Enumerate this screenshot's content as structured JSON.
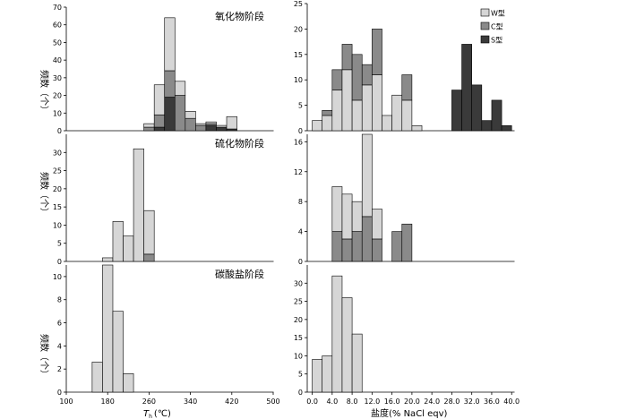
{
  "colors": {
    "W": "#d6d6d6",
    "C": "#8a8a8a",
    "S": "#3a3a3a",
    "stroke": "#000000"
  },
  "labels": {
    "ylabel_left": "频数（个）",
    "xlabel_left_main": "T",
    "xlabel_left_sub": "h",
    "xlabel_left_unit": "(℃)",
    "xlabel_right": "盐度(% NaCl eqv)"
  },
  "chart_data": [
    {
      "id": "th-oxide",
      "type": "bar",
      "stacked": true,
      "title": "氧化物阶段",
      "xlim": [
        100,
        500
      ],
      "ylim": [
        0,
        70
      ],
      "yticks": [
        0,
        10,
        20,
        30,
        40,
        50,
        60,
        70
      ],
      "xticks": [],
      "bin_width": 20,
      "bins": [
        260,
        280,
        300,
        320,
        340,
        360,
        380,
        400,
        420
      ],
      "series": [
        {
          "name": "",
          "key": "S",
          "values": [
            0,
            2,
            19,
            0,
            0,
            0,
            3,
            2,
            1
          ]
        },
        {
          "name": "",
          "key": "C",
          "values": [
            2,
            7,
            15,
            20,
            7,
            3,
            1,
            0,
            0
          ]
        },
        {
          "name": "",
          "key": "W",
          "values": [
            2,
            17,
            30,
            8,
            4,
            1,
            1,
            1,
            7
          ]
        }
      ]
    },
    {
      "id": "th-sulfide",
      "type": "bar",
      "stacked": true,
      "title": "硫化物阶段",
      "xlim": [
        100,
        500
      ],
      "ylim": [
        0,
        35
      ],
      "yticks": [
        0,
        5,
        10,
        15,
        20,
        25,
        30
      ],
      "xticks": [],
      "bin_width": 20,
      "bins": [
        180,
        200,
        220,
        240,
        260
      ],
      "series": [
        {
          "name": "",
          "key": "C",
          "values": [
            0,
            0,
            0,
            0,
            2
          ]
        },
        {
          "name": "",
          "key": "W",
          "values": [
            1,
            11,
            7,
            31,
            12
          ]
        }
      ]
    },
    {
      "id": "th-carbonate",
      "type": "bar",
      "stacked": true,
      "title": "碳酸盐阶段",
      "xlim": [
        100,
        500
      ],
      "ylim": [
        0,
        11
      ],
      "yticks": [
        0,
        2,
        4,
        6,
        8,
        10
      ],
      "xticks": [
        100,
        180,
        260,
        340,
        420,
        500
      ],
      "bin_width": 20,
      "bins": [
        160,
        180,
        200,
        220
      ],
      "series": [
        {
          "name": "",
          "key": "W",
          "values": [
            2.6,
            11,
            7,
            1.6
          ]
        }
      ]
    },
    {
      "id": "sal-oxide",
      "type": "bar",
      "stacked": true,
      "title": "",
      "xlim": [
        -1,
        40.5
      ],
      "ylim": [
        0,
        25
      ],
      "yticks": [
        0,
        5,
        10,
        15,
        20,
        25
      ],
      "xticks": [],
      "bin_width": 2,
      "bins": [
        1,
        3,
        5,
        7,
        9,
        11,
        13,
        15,
        17,
        19,
        21,
        23,
        25,
        27,
        29,
        31,
        33,
        35,
        37,
        39
      ],
      "legend": {
        "position": "top-right",
        "entries": [
          {
            "key": "W",
            "label": "W型"
          },
          {
            "key": "C",
            "label": "C型"
          },
          {
            "key": "S",
            "label": "S型"
          }
        ]
      },
      "series": [
        {
          "name": "W型",
          "key": "W",
          "values": [
            2,
            3,
            8,
            12,
            6,
            9,
            11,
            3,
            7,
            6,
            1,
            0,
            0,
            0,
            0,
            0,
            0,
            0,
            0,
            0
          ]
        },
        {
          "name": "C型",
          "key": "C",
          "values": [
            0,
            1,
            4,
            5,
            9,
            4,
            9,
            0,
            0,
            5,
            0,
            0,
            0,
            0,
            0,
            0,
            0,
            0,
            0,
            0
          ]
        },
        {
          "name": "S型",
          "key": "S",
          "values": [
            0,
            0,
            0,
            0,
            0,
            0,
            0,
            0,
            0,
            0,
            0,
            0,
            0,
            0,
            8,
            17,
            9,
            2,
            6,
            1
          ]
        }
      ]
    },
    {
      "id": "sal-sulfide",
      "type": "bar",
      "stacked": true,
      "title": "",
      "xlim": [
        -1,
        40.5
      ],
      "ylim": [
        0,
        17
      ],
      "yticks": [
        0,
        4,
        8,
        12,
        16
      ],
      "xticks": [],
      "bin_width": 2,
      "bins": [
        5,
        7,
        9,
        11,
        13,
        15,
        17,
        19
      ],
      "series": [
        {
          "name": "",
          "key": "C",
          "values": [
            4,
            3,
            4,
            6,
            3,
            0,
            4,
            5
          ]
        },
        {
          "name": "",
          "key": "W",
          "values": [
            6,
            6,
            4,
            11,
            4,
            0,
            0,
            0
          ]
        }
      ]
    },
    {
      "id": "sal-carbonate",
      "type": "bar",
      "stacked": true,
      "title": "",
      "xlim": [
        -1,
        40.5
      ],
      "ylim": [
        0,
        35
      ],
      "yticks": [
        0,
        5,
        10,
        15,
        20,
        25,
        30
      ],
      "xticks": [
        0.0,
        4.0,
        8.0,
        12.0,
        16.0,
        20.0,
        24.0,
        28.0,
        32.0,
        36.0,
        40.0
      ],
      "xtick_labels": [
        "0.0",
        "4.0",
        "8.0",
        "12.0",
        "16.0",
        "20.0",
        "24.0",
        "28.0",
        "32.0",
        "36.0",
        "40.0"
      ],
      "bin_width": 2,
      "bins": [
        1,
        3,
        5,
        7,
        9
      ],
      "series": [
        {
          "name": "",
          "key": "W",
          "values": [
            9,
            10,
            32,
            26,
            16
          ]
        }
      ]
    }
  ]
}
